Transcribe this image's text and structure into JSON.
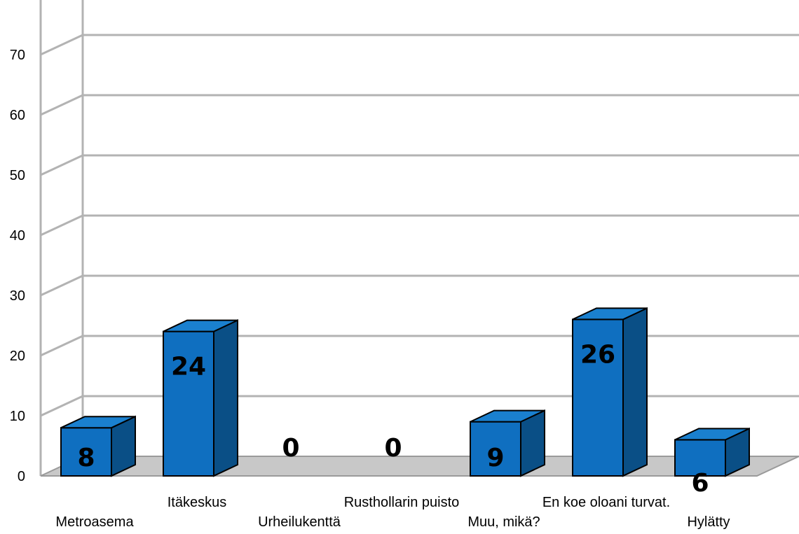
{
  "chart_data": {
    "type": "bar",
    "title": "",
    "xlabel": "",
    "ylabel": "",
    "categories": [
      "Metroasema",
      "Itäkeskus",
      "Urheilukenttä",
      "Rusthollarin puisto",
      "Muu, mikä?",
      "En koe oloani turvat.",
      "Hylätty"
    ],
    "values": [
      8,
      24,
      0,
      0,
      9,
      26,
      6
    ],
    "data_labels": [
      "8",
      "24",
      "0",
      "0",
      "9",
      "26",
      "6"
    ],
    "yticks": [
      0,
      10,
      20,
      30,
      40,
      50,
      60,
      70
    ],
    "ytick_labels": [
      "0",
      "10",
      "20",
      "30",
      "40",
      "50",
      "60",
      "70"
    ],
    "ylim": [
      0,
      80
    ],
    "grid": true,
    "legend": "none",
    "style": "3d",
    "colors": {
      "bar_front": "#0f6fc0",
      "bar_top": "#1a80cf",
      "bar_side": "#0a4f86",
      "grid": "#b3b3b3",
      "floor": "#c8c8c8"
    }
  }
}
